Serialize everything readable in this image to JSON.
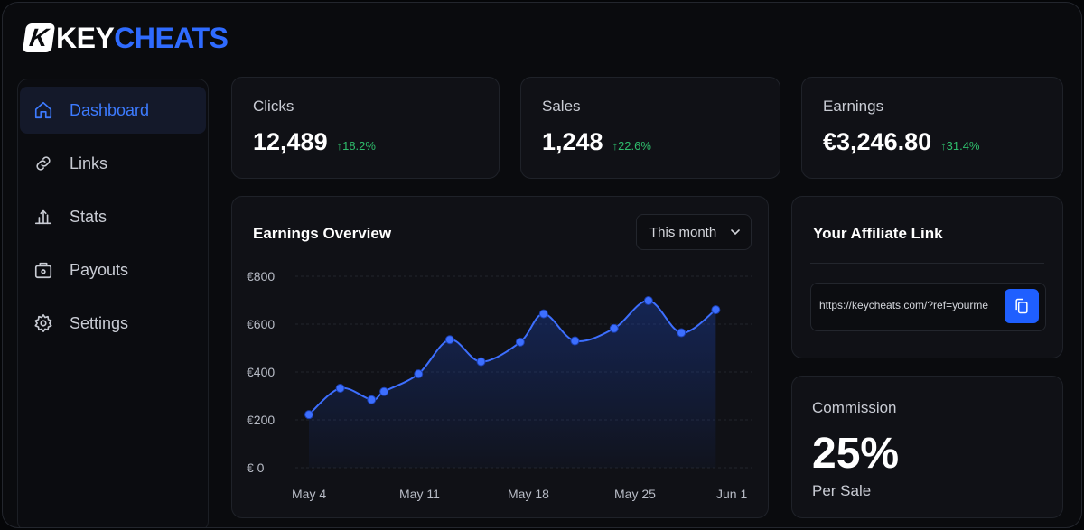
{
  "brand": {
    "key": "KEY",
    "cheats": "CHEATS",
    "badge": "K"
  },
  "nav": [
    {
      "label": "Dashboard",
      "icon": "home-icon",
      "active": true
    },
    {
      "label": "Links",
      "icon": "link-icon",
      "active": false
    },
    {
      "label": "Stats",
      "icon": "chart-icon",
      "active": false
    },
    {
      "label": "Payouts",
      "icon": "wallet-icon",
      "active": false
    },
    {
      "label": "Settings",
      "icon": "gear-icon",
      "active": false
    }
  ],
  "stats": [
    {
      "label": "Clicks",
      "value": "12,489",
      "change": "↑18.2%"
    },
    {
      "label": "Sales",
      "value": "1,248",
      "change": "↑22.6%"
    },
    {
      "label": "Earnings",
      "value": "€3,246.80",
      "change": "↑31.4%"
    }
  ],
  "earnings": {
    "title": "Earnings Overview",
    "range": "This month"
  },
  "affiliate": {
    "title": "Your Affiliate Link",
    "url": "https://keycheats.com/?ref=yourme"
  },
  "commission": {
    "label": "Commission",
    "value": "25%",
    "sub": "Per Sale"
  },
  "colors": {
    "accent": "#2f6bff",
    "positive": "#2fbd6c",
    "background": "#0a0b0e"
  },
  "chart_data": {
    "type": "area",
    "title": "",
    "xlabel": "",
    "ylabel": "",
    "y_ticks": [
      "€ 0",
      "€200",
      "€400",
      "€600",
      "€800"
    ],
    "x_ticks": [
      "May 4",
      "May 11",
      "May 18",
      "May 25",
      "Jun 1"
    ],
    "ylim": [
      0,
      800
    ],
    "grid": true,
    "x": [
      0,
      2,
      4,
      4.8,
      7,
      9,
      11,
      13.5,
      15,
      17,
      19.5,
      21.7,
      23.8,
      26,
      28.5
    ],
    "values": [
      222,
      332,
      284,
      318,
      392,
      535,
      443,
      525,
      643,
      530,
      582,
      698,
      564,
      660,
      null
    ]
  }
}
